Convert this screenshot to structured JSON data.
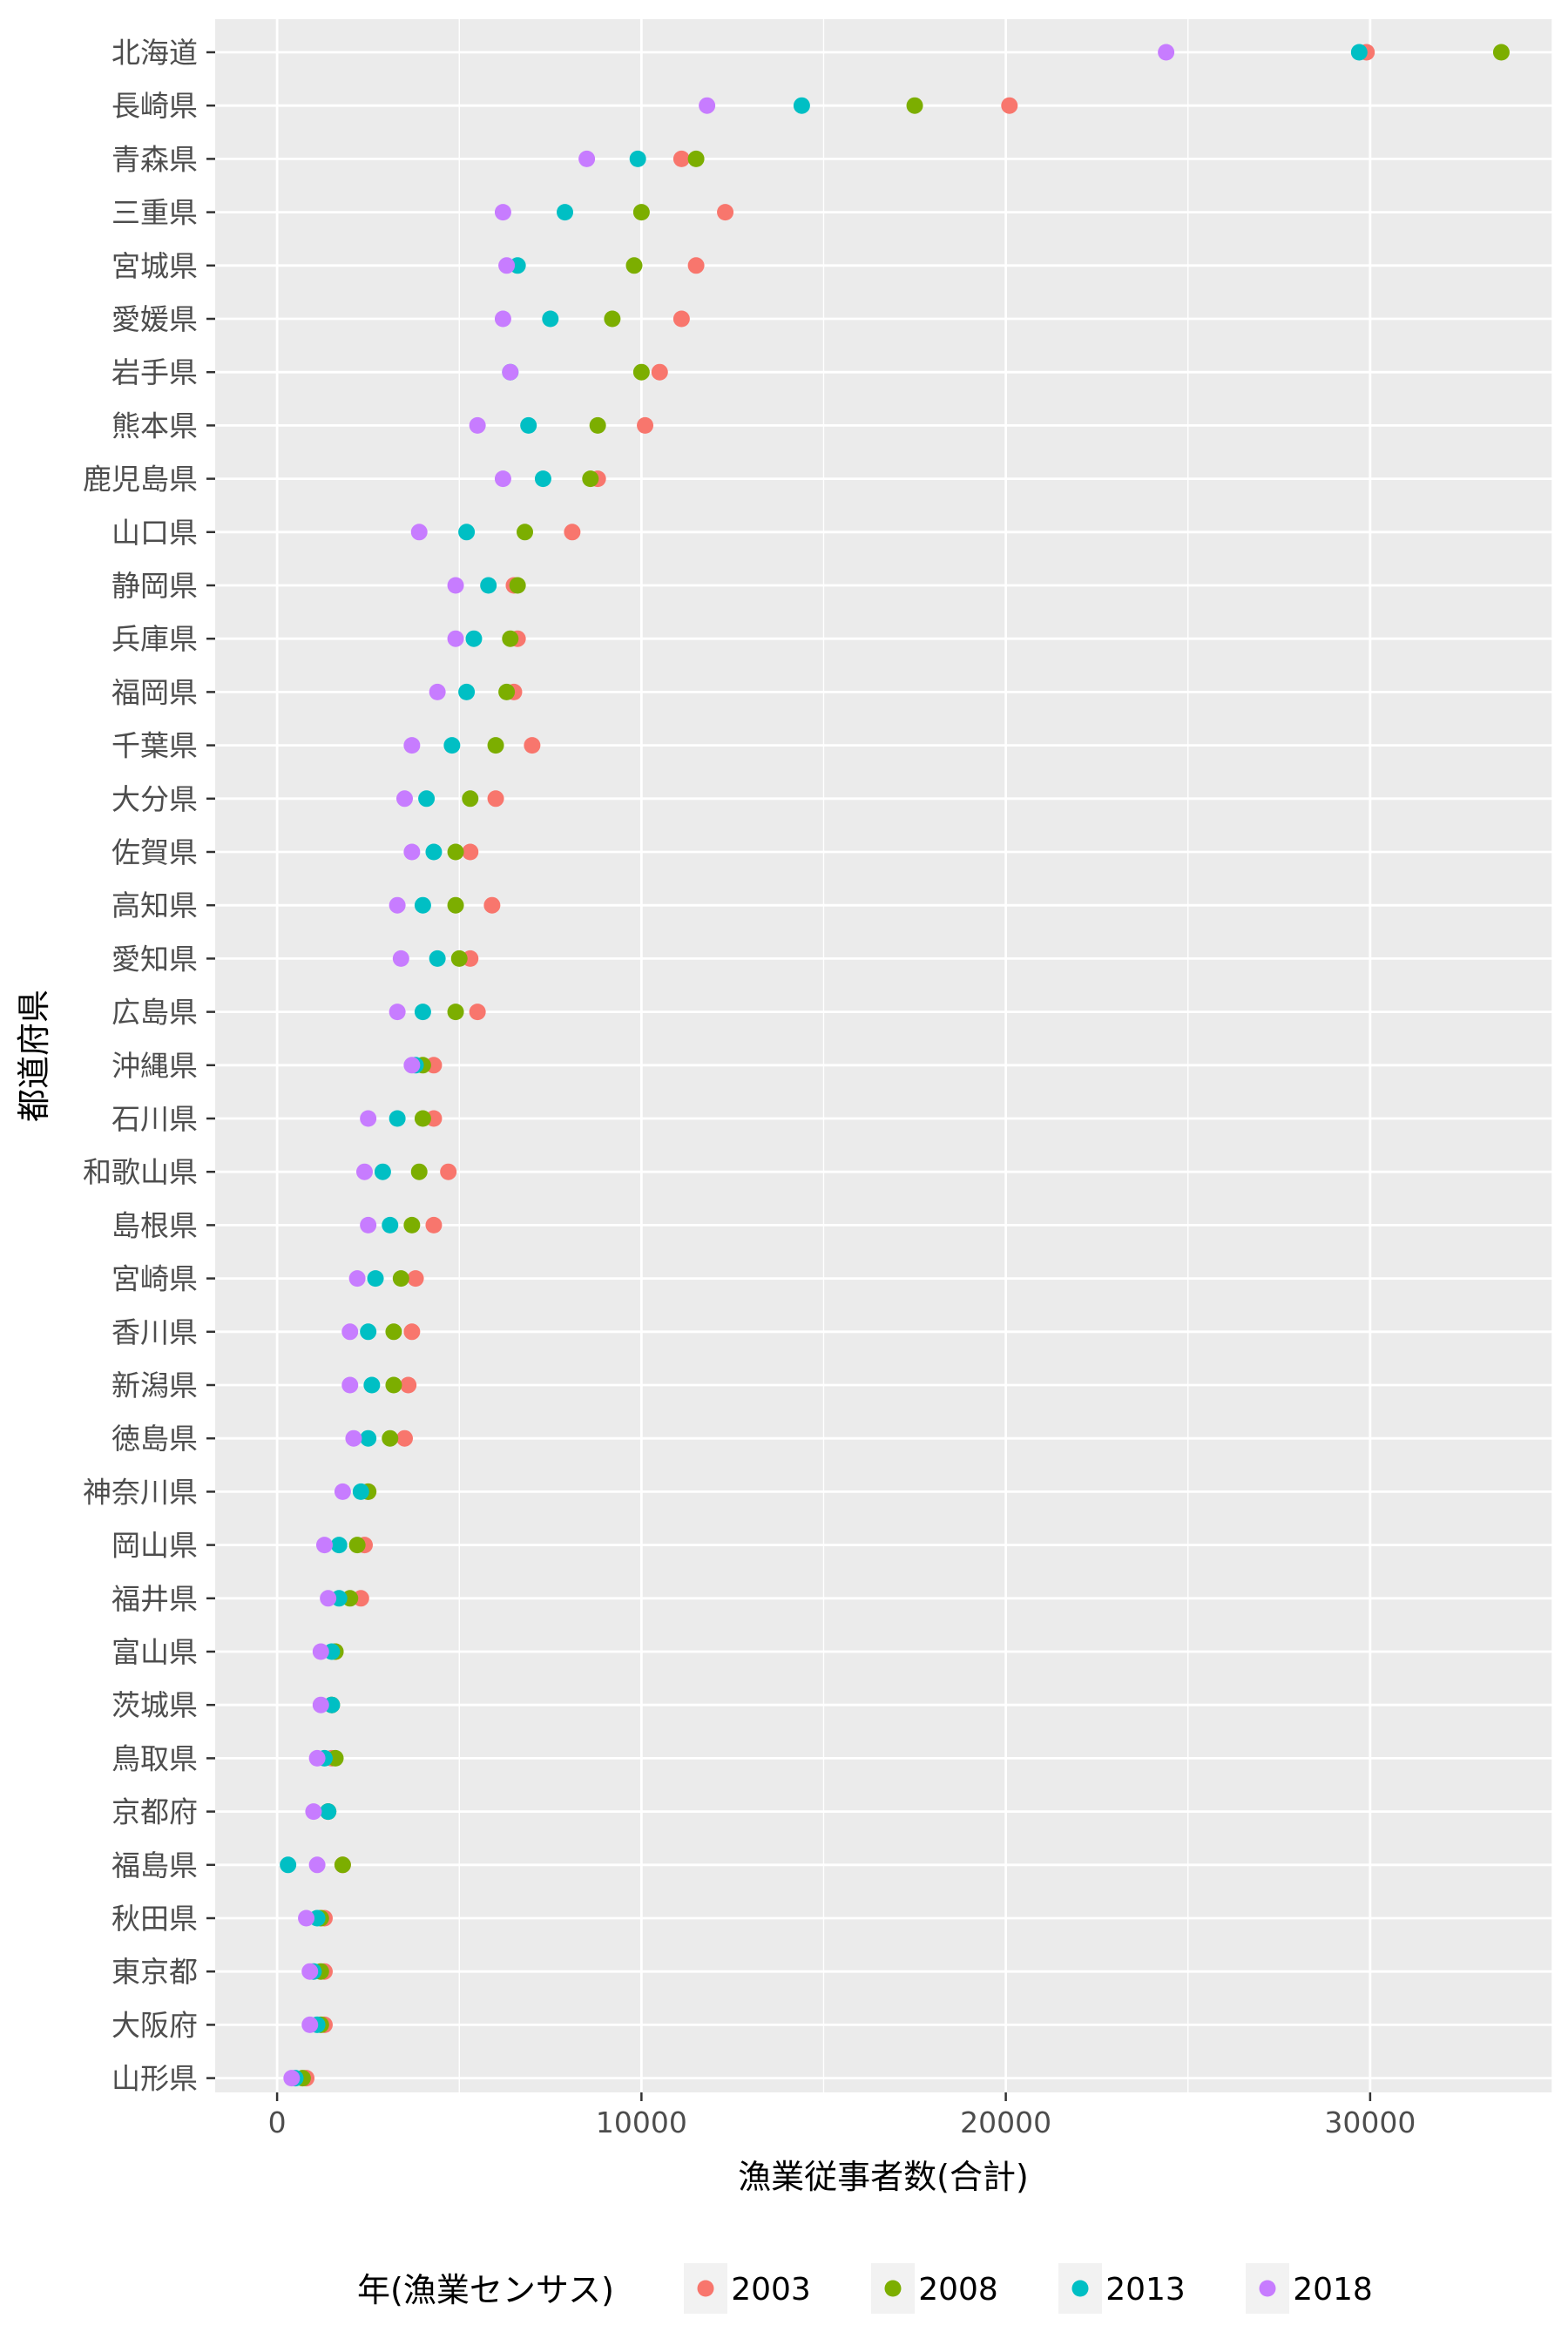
{
  "chart_data": {
    "type": "scatter",
    "xlabel": "漁業従事者数(合計)",
    "ylabel": "都道府県",
    "xlim": [
      -1700,
      35000
    ],
    "x_ticks": [
      0,
      10000,
      20000,
      30000
    ],
    "x_tick_labels": [
      "0",
      "10000",
      "20000",
      "30000"
    ],
    "grid": true,
    "legend": {
      "title": "年(漁業センサス)",
      "position": "bottom",
      "entries": [
        "2003",
        "2008",
        "2013",
        "2018"
      ]
    },
    "colors": {
      "2003": "#F8766D",
      "2008": "#7CAE00",
      "2013": "#00BFC4",
      "2018": "#C77CFF"
    },
    "categories": [
      "北海道",
      "長崎県",
      "青森県",
      "三重県",
      "宮城県",
      "愛媛県",
      "岩手県",
      "熊本県",
      "鹿児島県",
      "山口県",
      "静岡県",
      "兵庫県",
      "福岡県",
      "千葉県",
      "大分県",
      "佐賀県",
      "高知県",
      "愛知県",
      "広島県",
      "沖縄県",
      "石川県",
      "和歌山県",
      "島根県",
      "宮崎県",
      "香川県",
      "新潟県",
      "徳島県",
      "神奈川県",
      "岡山県",
      "福井県",
      "富山県",
      "茨城県",
      "鳥取県",
      "京都府",
      "福島県",
      "秋田県",
      "東京都",
      "大阪府",
      "山形県"
    ],
    "series": [
      {
        "name": "2003",
        "values": [
          29900,
          20100,
          11100,
          12300,
          11500,
          11100,
          10500,
          10100,
          8800,
          8100,
          6500,
          6600,
          6500,
          7000,
          6000,
          5300,
          5900,
          5300,
          5500,
          4300,
          4300,
          4700,
          4300,
          3800,
          3700,
          3600,
          3500,
          2500,
          2400,
          2300,
          1600,
          1500,
          1500,
          1400,
          1800,
          1300,
          1300,
          1300,
          800
        ]
      },
      {
        "name": "2008",
        "values": [
          33600,
          17500,
          11500,
          10000,
          9800,
          9200,
          10000,
          8800,
          8600,
          6800,
          6600,
          6400,
          6300,
          6000,
          5300,
          4900,
          4900,
          5000,
          4900,
          4000,
          4000,
          3900,
          3700,
          3400,
          3200,
          3200,
          3100,
          2500,
          2200,
          2000,
          1600,
          1500,
          1600,
          1400,
          1800,
          1200,
          1200,
          1200,
          700
        ]
      },
      {
        "name": "2013",
        "values": [
          29700,
          14400,
          9900,
          7900,
          6600,
          7500,
          6400,
          6900,
          7300,
          5200,
          5800,
          5400,
          5200,
          4800,
          4100,
          4300,
          4000,
          4400,
          4000,
          3800,
          3300,
          2900,
          3100,
          2700,
          2500,
          2600,
          2500,
          2300,
          1700,
          1700,
          1500,
          1500,
          1300,
          1400,
          300,
          1100,
          1000,
          1100,
          500
        ]
      },
      {
        "name": "2018",
        "values": [
          24400,
          11800,
          8500,
          6200,
          6300,
          6200,
          6400,
          5500,
          6200,
          3900,
          4900,
          4900,
          4400,
          3700,
          3500,
          3700,
          3300,
          3400,
          3300,
          3700,
          2500,
          2400,
          2500,
          2200,
          2000,
          2000,
          2100,
          1800,
          1300,
          1400,
          1200,
          1200,
          1100,
          1000,
          1100,
          800,
          900,
          900,
          400
        ]
      }
    ]
  }
}
